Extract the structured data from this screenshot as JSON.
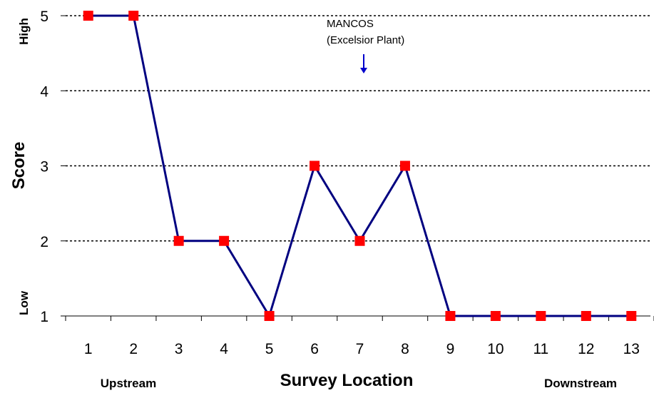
{
  "chart_data": {
    "type": "line",
    "categories": [
      "1",
      "2",
      "3",
      "4",
      "5",
      "6",
      "7",
      "8",
      "9",
      "10",
      "11",
      "12",
      "13"
    ],
    "series": [
      {
        "values": [
          5,
          5,
          2,
          2,
          1,
          3,
          2,
          3,
          1,
          1,
          1,
          1,
          1
        ]
      }
    ],
    "xlabel": "Survey Location",
    "ylabel": "Score",
    "ylim": [
      1,
      5
    ],
    "yticks": [
      "1",
      "2",
      "3",
      "4",
      "5"
    ],
    "y_low_label": "Low",
    "y_high_label": "High",
    "x_left_label": "Upstream",
    "x_right_label": "Downstream",
    "annotation": {
      "line1": "MANCOS",
      "line2": "(Excelsior Plant)",
      "at_category": "7"
    },
    "grid": "horizontal-dotted",
    "colors": {
      "line": "#000080",
      "marker": "#ff0000",
      "arrow": "#0000cc",
      "grid": "#000000"
    }
  }
}
